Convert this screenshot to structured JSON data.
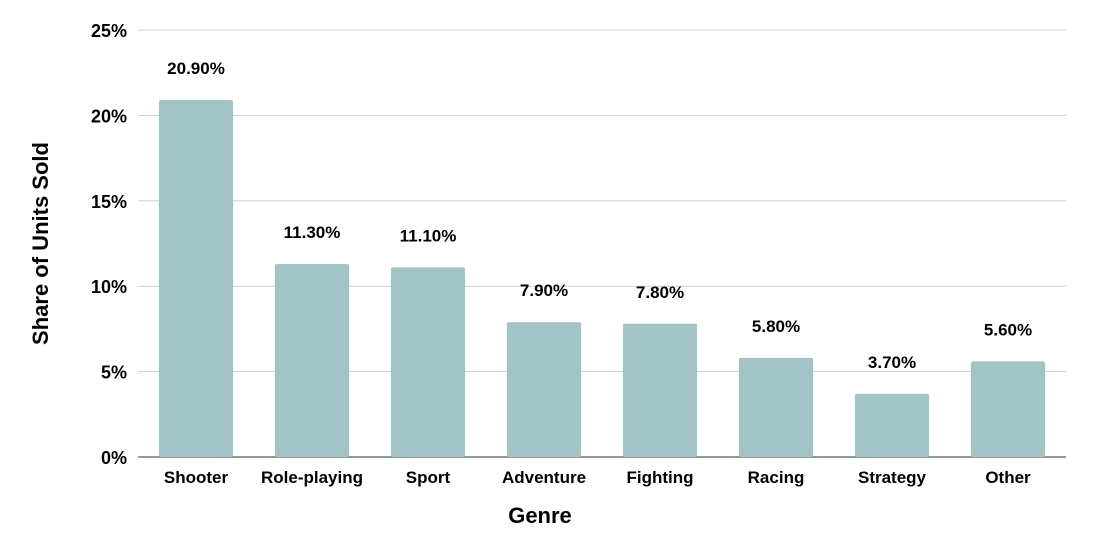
{
  "chart_data": {
    "type": "bar",
    "categories": [
      "Shooter",
      "Role-playing",
      "Sport",
      "Adventure",
      "Fighting",
      "Racing",
      "Strategy",
      "Other"
    ],
    "values": [
      20.9,
      11.3,
      11.1,
      7.9,
      7.8,
      5.8,
      3.7,
      5.6
    ],
    "data_labels": [
      "20.90%",
      "11.30%",
      "11.10%",
      "7.90%",
      "7.80%",
      "5.80%",
      "3.70%",
      "5.60%"
    ],
    "title": "",
    "xlabel": "Genre",
    "ylabel": "Share of Units Sold",
    "ylim": [
      0,
      25
    ],
    "yticks": [
      0,
      5,
      10,
      15,
      20,
      25
    ],
    "ytick_labels": [
      "0%",
      "5%",
      "10%",
      "15%",
      "20%",
      "25%"
    ],
    "grid": true,
    "legend": "none",
    "bar_color": "#a3c4c7"
  }
}
